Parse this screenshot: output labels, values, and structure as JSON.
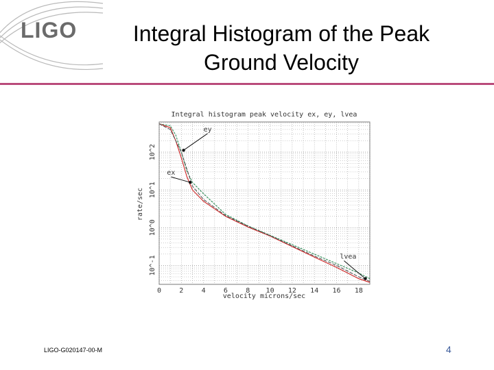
{
  "slide": {
    "logo": "LIGO",
    "title": "Integral Histogram of the Peak Ground Velocity",
    "footer_id": "LIGO-G020147-00-M",
    "page_number": "4"
  },
  "colors": {
    "rule": "#b94a7a",
    "ey": "#2e8b57",
    "ex": "#cc2222",
    "lvea": "#555555"
  },
  "chart_data": {
    "type": "line",
    "title": "Integral histogram peak velocity ex, ey, lvea",
    "xlabel": "velocity microns/sec",
    "ylabel": "rate/sec",
    "xlim": [
      0,
      19
    ],
    "ylim_log10": [
      -1.5,
      2.8
    ],
    "x_ticks": [
      0,
      2,
      4,
      6,
      8,
      10,
      12,
      14,
      16,
      18
    ],
    "x_tick_labels": [
      "0",
      "2",
      "4",
      "6",
      "8",
      "10",
      "12",
      "14",
      "16",
      "18"
    ],
    "y_ticks": [
      -1,
      0,
      1,
      2
    ],
    "y_tick_labels": [
      "10^-1",
      "10^0",
      "10^1",
      "10^2"
    ],
    "annotations": [
      "ey",
      "ex",
      "lvea"
    ],
    "series": [
      {
        "name": "ey",
        "x": [
          0,
          1,
          1.5,
          2,
          2.5,
          3,
          3.5,
          4,
          6,
          8,
          10,
          12,
          14,
          16,
          18,
          19
        ],
        "log10_y": [
          2.75,
          2.7,
          2.45,
          2.0,
          1.5,
          1.2,
          1.05,
          0.9,
          0.35,
          0.05,
          -0.2,
          -0.45,
          -0.7,
          -0.95,
          -1.2,
          -1.35
        ]
      },
      {
        "name": "ex",
        "x": [
          0,
          1,
          1.5,
          2,
          2.5,
          3,
          3.5,
          4,
          6,
          8,
          10,
          12,
          14,
          16,
          18,
          19
        ],
        "log10_y": [
          2.75,
          2.65,
          2.3,
          1.85,
          1.35,
          1.0,
          0.85,
          0.7,
          0.3,
          0.02,
          -0.22,
          -0.5,
          -0.78,
          -1.05,
          -1.35,
          -1.45
        ]
      },
      {
        "name": "lvea",
        "x": [
          0,
          1,
          2,
          3,
          4,
          6,
          8,
          10,
          12,
          14,
          16,
          18,
          19
        ],
        "log10_y": [
          2.75,
          2.6,
          2.0,
          1.1,
          0.75,
          0.32,
          0.04,
          -0.21,
          -0.48,
          -0.75,
          -1.0,
          -1.3,
          -1.42
        ]
      }
    ]
  }
}
